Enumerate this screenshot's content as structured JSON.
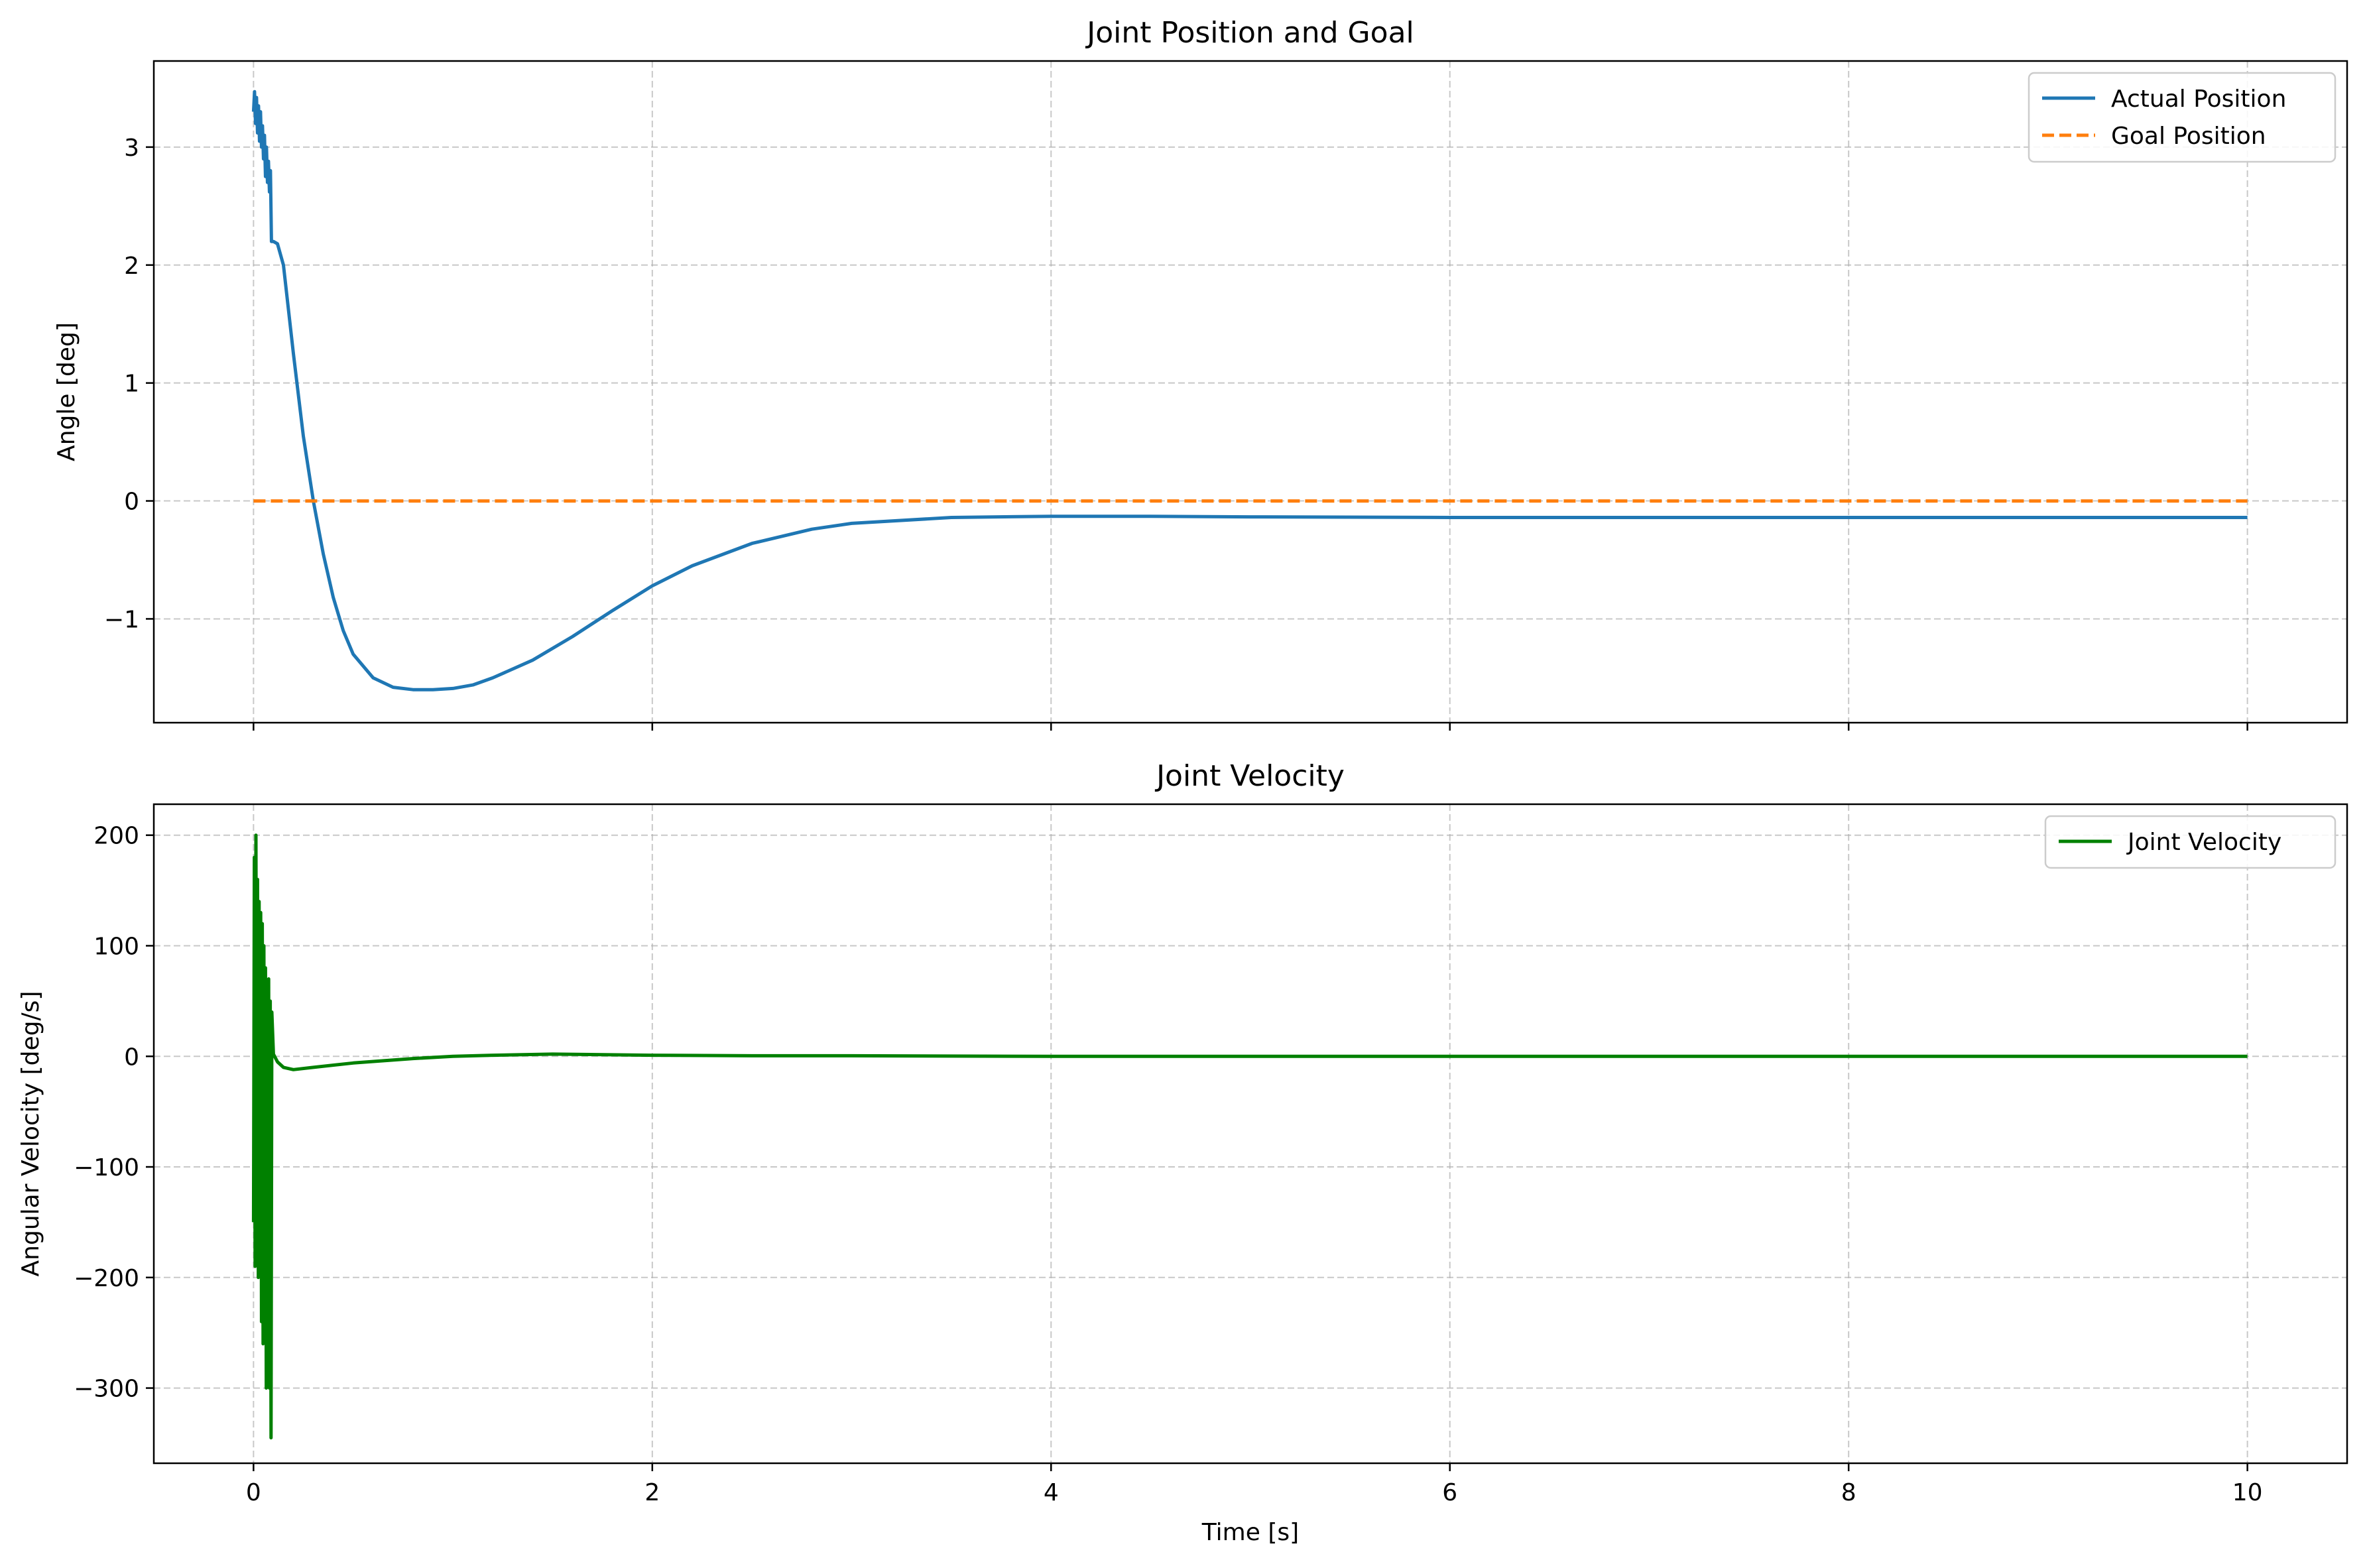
{
  "chart_data": [
    {
      "type": "line",
      "title": "Joint Position and Goal",
      "xlabel": "",
      "ylabel": "Angle [deg]",
      "xlim": [
        -0.5,
        10.5
      ],
      "ylim": [
        -1.88,
        3.73
      ],
      "xticks": [
        0,
        2,
        4,
        6,
        8,
        10
      ],
      "xtick_labels": [
        "",
        "",
        "",
        "",
        "",
        ""
      ],
      "yticks": [
        -1,
        0,
        1,
        2,
        3
      ],
      "ytick_labels": [
        "−1",
        "0",
        "1",
        "2",
        "3"
      ],
      "grid": true,
      "legend_position": "top-right",
      "series": [
        {
          "name": "Actual Position",
          "color": "#1f77b4",
          "style": "solid",
          "x": [
            0,
            0.005,
            0.01,
            0.015,
            0.02,
            0.025,
            0.03,
            0.035,
            0.04,
            0.045,
            0.05,
            0.055,
            0.06,
            0.065,
            0.07,
            0.075,
            0.08,
            0.085,
            0.09,
            0.1,
            0.12,
            0.15,
            0.2,
            0.25,
            0.3,
            0.35,
            0.4,
            0.45,
            0.5,
            0.6,
            0.7,
            0.8,
            0.9,
            1.0,
            1.1,
            1.2,
            1.4,
            1.6,
            1.8,
            2.0,
            2.2,
            2.5,
            2.8,
            3.0,
            3.5,
            4.0,
            4.5,
            5.0,
            6.0,
            7.0,
            8.0,
            9.0,
            10.0
          ],
          "y": [
            3.3,
            3.47,
            3.2,
            3.42,
            3.12,
            3.35,
            3.05,
            3.3,
            3.0,
            3.18,
            2.9,
            3.1,
            2.75,
            3.0,
            2.7,
            2.88,
            2.62,
            2.8,
            2.2,
            2.2,
            2.18,
            2.0,
            1.25,
            0.55,
            0.0,
            -0.45,
            -0.82,
            -1.1,
            -1.3,
            -1.5,
            -1.58,
            -1.6,
            -1.6,
            -1.59,
            -1.56,
            -1.5,
            -1.35,
            -1.15,
            -0.93,
            -0.72,
            -0.55,
            -0.36,
            -0.24,
            -0.19,
            -0.14,
            -0.13,
            -0.13,
            -0.135,
            -0.14,
            -0.14,
            -0.14,
            -0.14,
            -0.14
          ]
        },
        {
          "name": "Goal Position",
          "color": "#ff7f0e",
          "style": "dashed",
          "x": [
            0,
            10
          ],
          "y": [
            0,
            0
          ]
        }
      ]
    },
    {
      "type": "line",
      "title": "Joint Velocity",
      "xlabel": "Time [s]",
      "ylabel": "Angular Velocity [deg/s]",
      "xlim": [
        -0.5,
        10.5
      ],
      "ylim": [
        -368,
        228
      ],
      "xticks": [
        0,
        2,
        4,
        6,
        8,
        10
      ],
      "xtick_labels": [
        "0",
        "2",
        "4",
        "6",
        "8",
        "10"
      ],
      "yticks": [
        -300,
        -200,
        -100,
        0,
        100,
        200
      ],
      "ytick_labels": [
        "−300",
        "−200",
        "−100",
        "0",
        "100",
        "200"
      ],
      "grid": true,
      "legend_position": "top-right",
      "series": [
        {
          "name": "Joint Velocity",
          "color": "#008000",
          "style": "solid",
          "x": [
            0,
            0.004,
            0.008,
            0.012,
            0.016,
            0.02,
            0.024,
            0.028,
            0.032,
            0.036,
            0.04,
            0.044,
            0.048,
            0.052,
            0.056,
            0.06,
            0.064,
            0.068,
            0.072,
            0.076,
            0.08,
            0.084,
            0.088,
            0.092,
            0.1,
            0.12,
            0.15,
            0.2,
            0.3,
            0.5,
            0.8,
            1.0,
            1.2,
            1.5,
            2.0,
            2.5,
            3.0,
            4.0,
            5.0,
            6.0,
            7.0,
            8.0,
            9.0,
            10.0
          ],
          "y": [
            -150,
            180,
            -190,
            200,
            -120,
            160,
            -200,
            140,
            -180,
            130,
            -240,
            120,
            -260,
            100,
            -240,
            80,
            -300,
            60,
            -220,
            70,
            -300,
            50,
            -345,
            40,
            2,
            -5,
            -10,
            -12,
            -10,
            -6,
            -2,
            0,
            1,
            2,
            1,
            0.5,
            0.5,
            0,
            0,
            0,
            0,
            0,
            0,
            0
          ]
        }
      ]
    }
  ]
}
